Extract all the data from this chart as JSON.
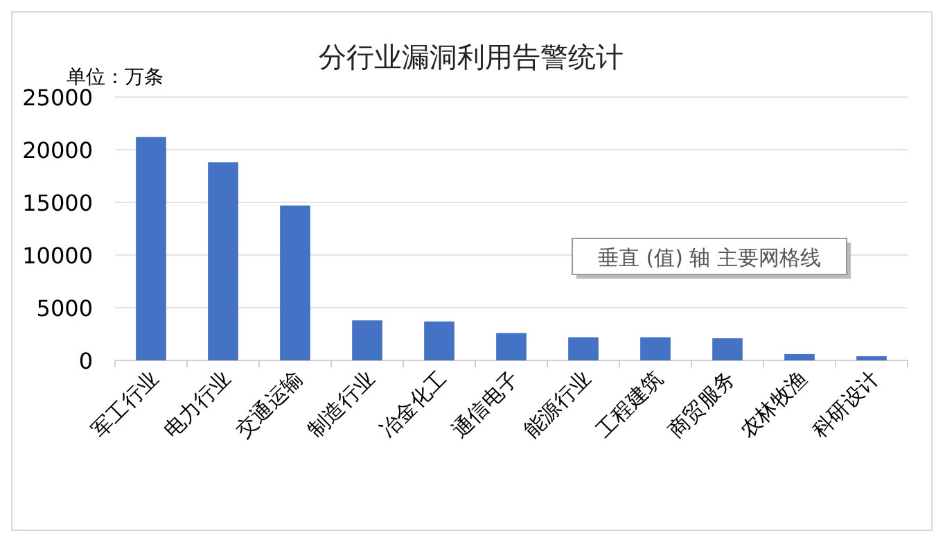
{
  "chart_data": {
    "type": "bar",
    "title": "分行业漏洞利用告警统计",
    "ylabel": "单位：万条",
    "categories": [
      "军工行业",
      "电力行业",
      "交通运输",
      "制造行业",
      "冶金化工",
      "通信电子",
      "能源行业",
      "工程建筑",
      "商贸服务",
      "农林牧渔",
      "科研设计"
    ],
    "values": [
      21200,
      18800,
      14700,
      3800,
      3700,
      2600,
      2200,
      2200,
      2100,
      600,
      400
    ],
    "color": "#4472c4",
    "ylim": [
      0,
      25000
    ],
    "yticks": [
      0,
      5000,
      10000,
      15000,
      20000,
      25000
    ],
    "grid": "y",
    "annotations": [
      "垂直 (值) 轴 主要网格线"
    ]
  }
}
